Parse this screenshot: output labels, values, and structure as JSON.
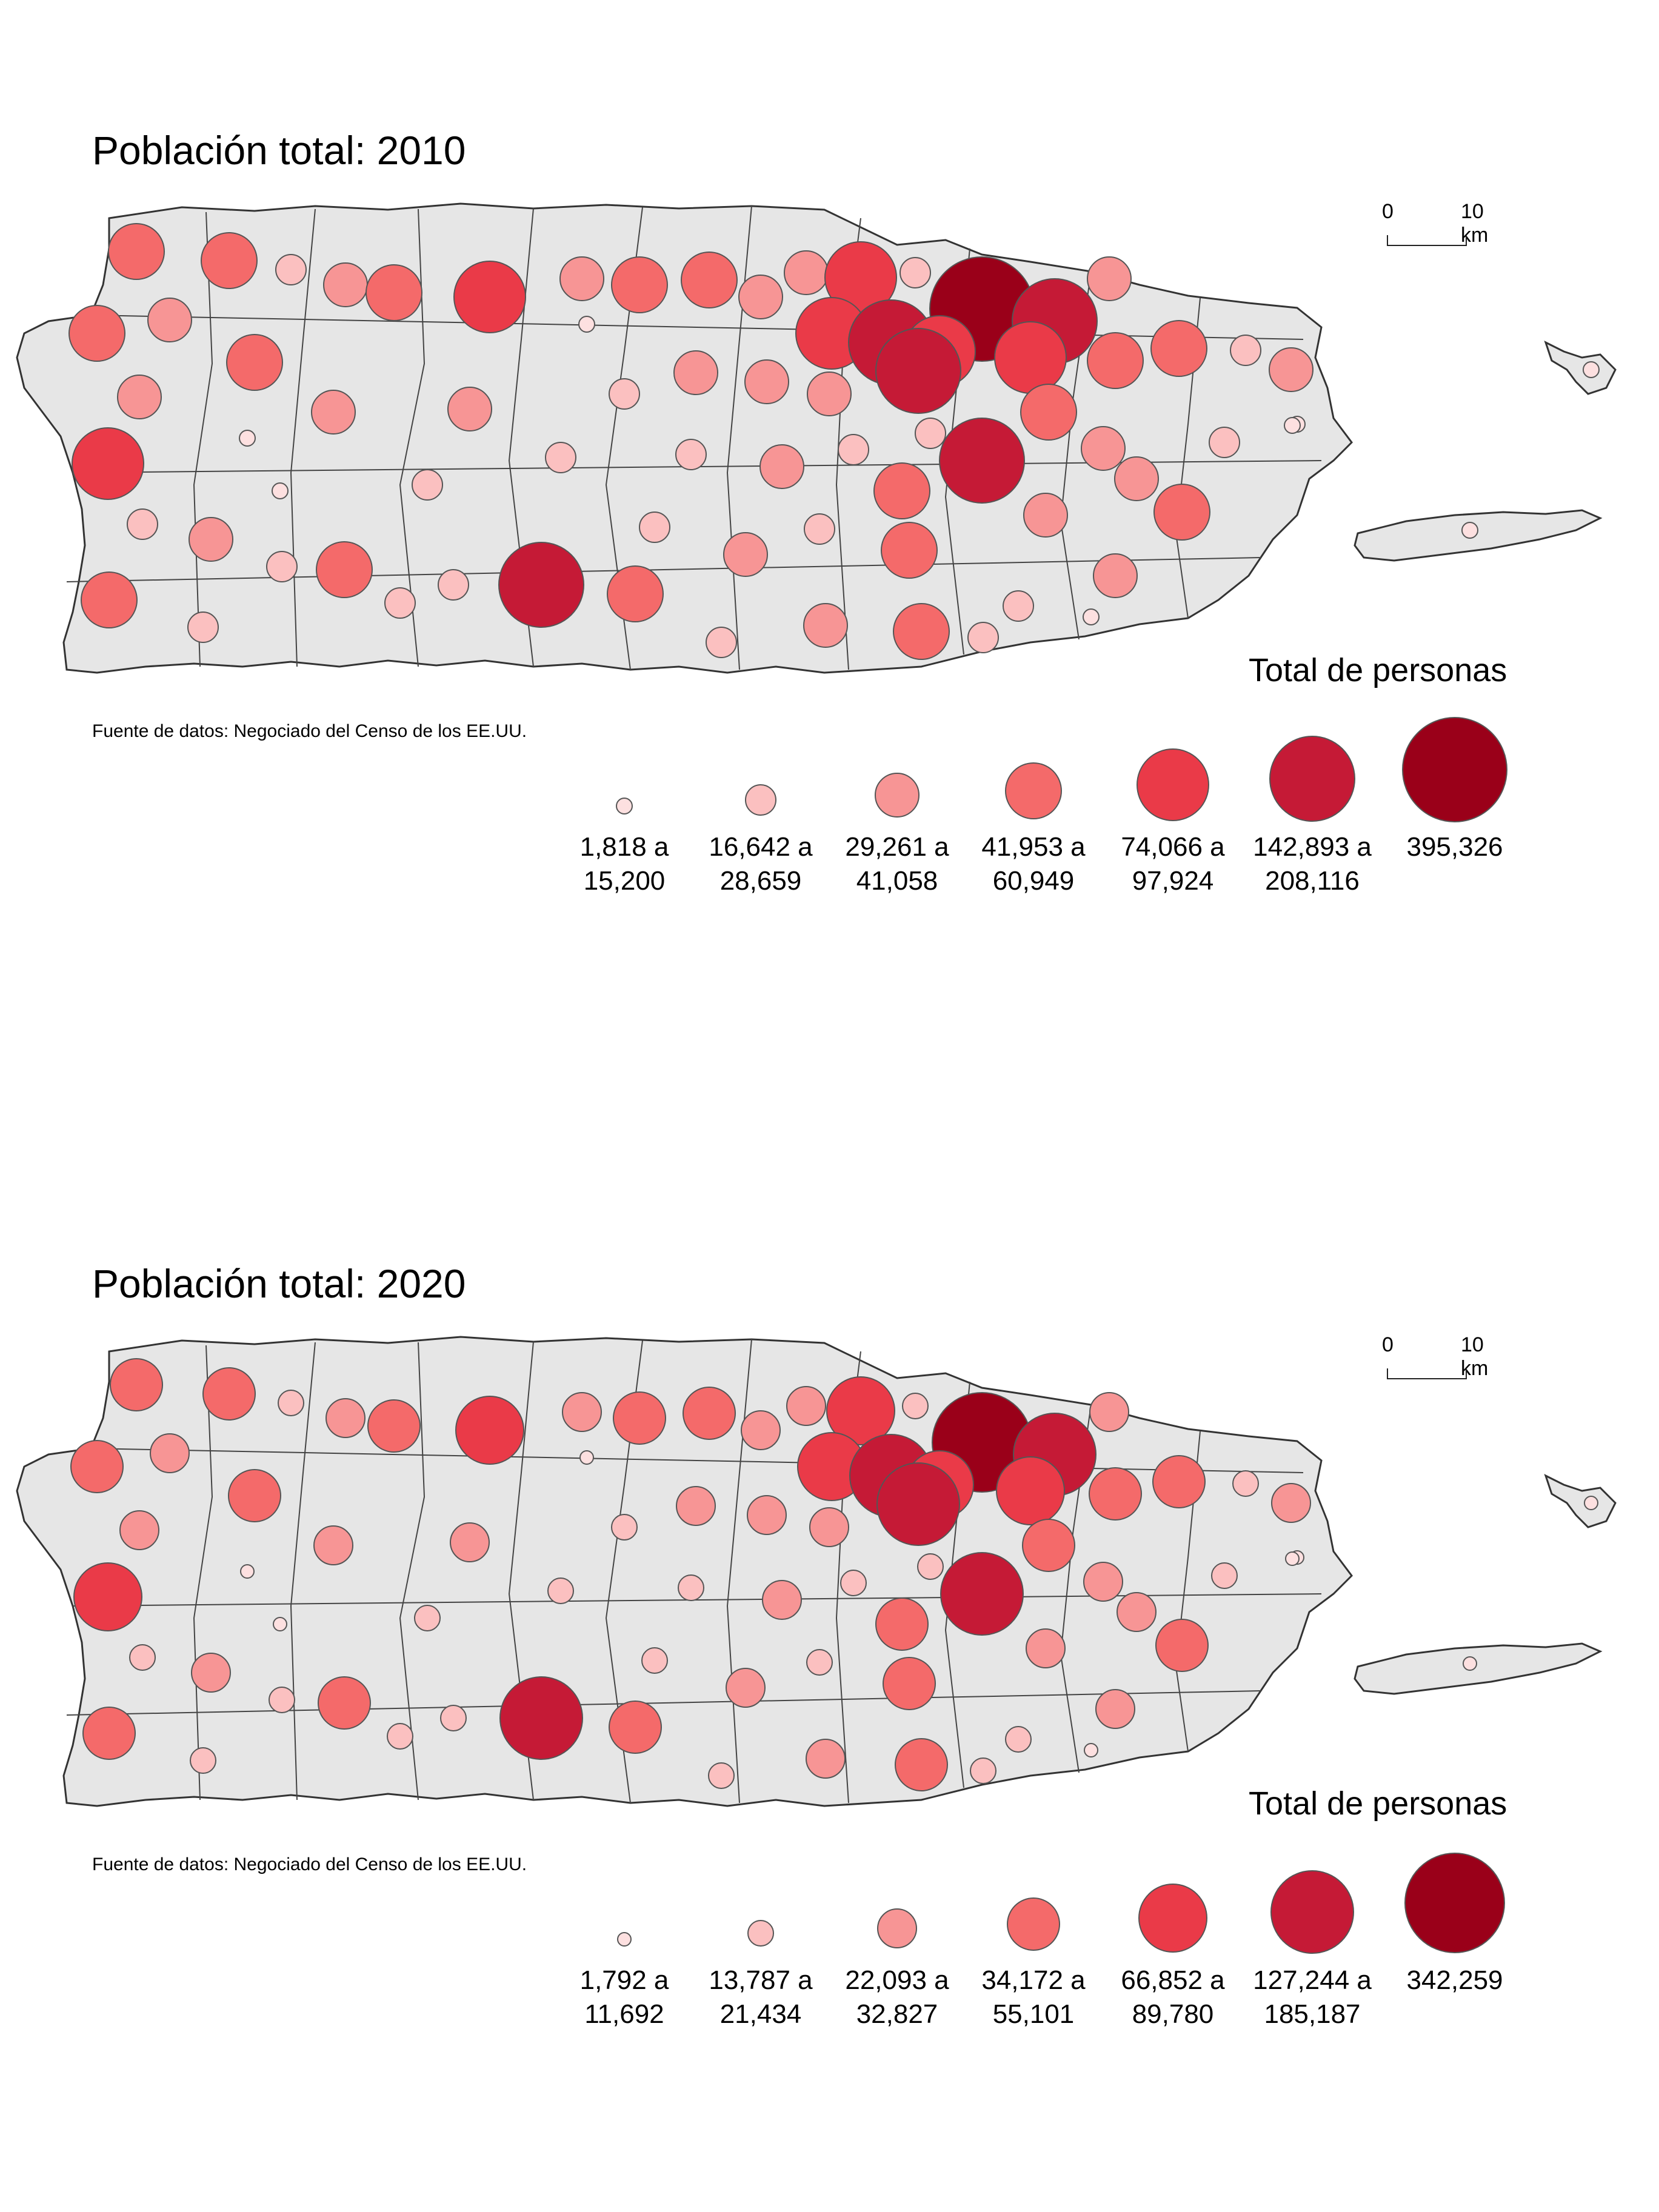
{
  "maps": [
    {
      "title": "Población total: 2010",
      "source": "Fuente de datos: Negociado del Censo de los EE.UU.",
      "legend_title": "Total de personas",
      "scale": {
        "zero": "0",
        "ten": "10 km"
      },
      "classes": [
        {
          "line1": "1,818 a",
          "line2": "15,200",
          "color": "#fde0e0"
        },
        {
          "line1": "16,642 a",
          "line2": "28,659",
          "color": "#fbc0c0"
        },
        {
          "line1": "29,261 a",
          "line2": "41,058",
          "color": "#f79595"
        },
        {
          "line1": "41,953 a",
          "line2": "60,949",
          "color": "#f46a6a"
        },
        {
          "line1": "74,066 a",
          "line2": "97,924",
          "color": "#ea3a48"
        },
        {
          "line1": "142,893 a",
          "line2": "208,116",
          "color": "#c51a36"
        },
        {
          "line1": "395,326",
          "line2": "",
          "color": "#9a0019"
        }
      ]
    },
    {
      "title": "Población total: 2020",
      "source": "Fuente de datos: Negociado del Censo de los EE.UU.",
      "legend_title": "Total de personas",
      "scale": {
        "zero": "0",
        "ten": "10 km"
      },
      "classes": [
        {
          "line1": "1,792 a",
          "line2": "11,692",
          "color": "#fde0e0"
        },
        {
          "line1": "13,787 a",
          "line2": "21,434",
          "color": "#fbc0c0"
        },
        {
          "line1": "22,093 a",
          "line2": "32,827",
          "color": "#f79595"
        },
        {
          "line1": "34,172 a",
          "line2": "55,101",
          "color": "#f46a6a"
        },
        {
          "line1": "66,852 a",
          "line2": "89,780",
          "color": "#ea3a48"
        },
        {
          "line1": "127,244 a",
          "line2": "185,187",
          "color": "#c51a36"
        },
        {
          "line1": "342,259",
          "line2": "",
          "color": "#9a0019"
        }
      ]
    }
  ],
  "colors": {
    "land": "#e6e6e6",
    "border": "#333333",
    "circle_stroke": "#555555"
  }
}
